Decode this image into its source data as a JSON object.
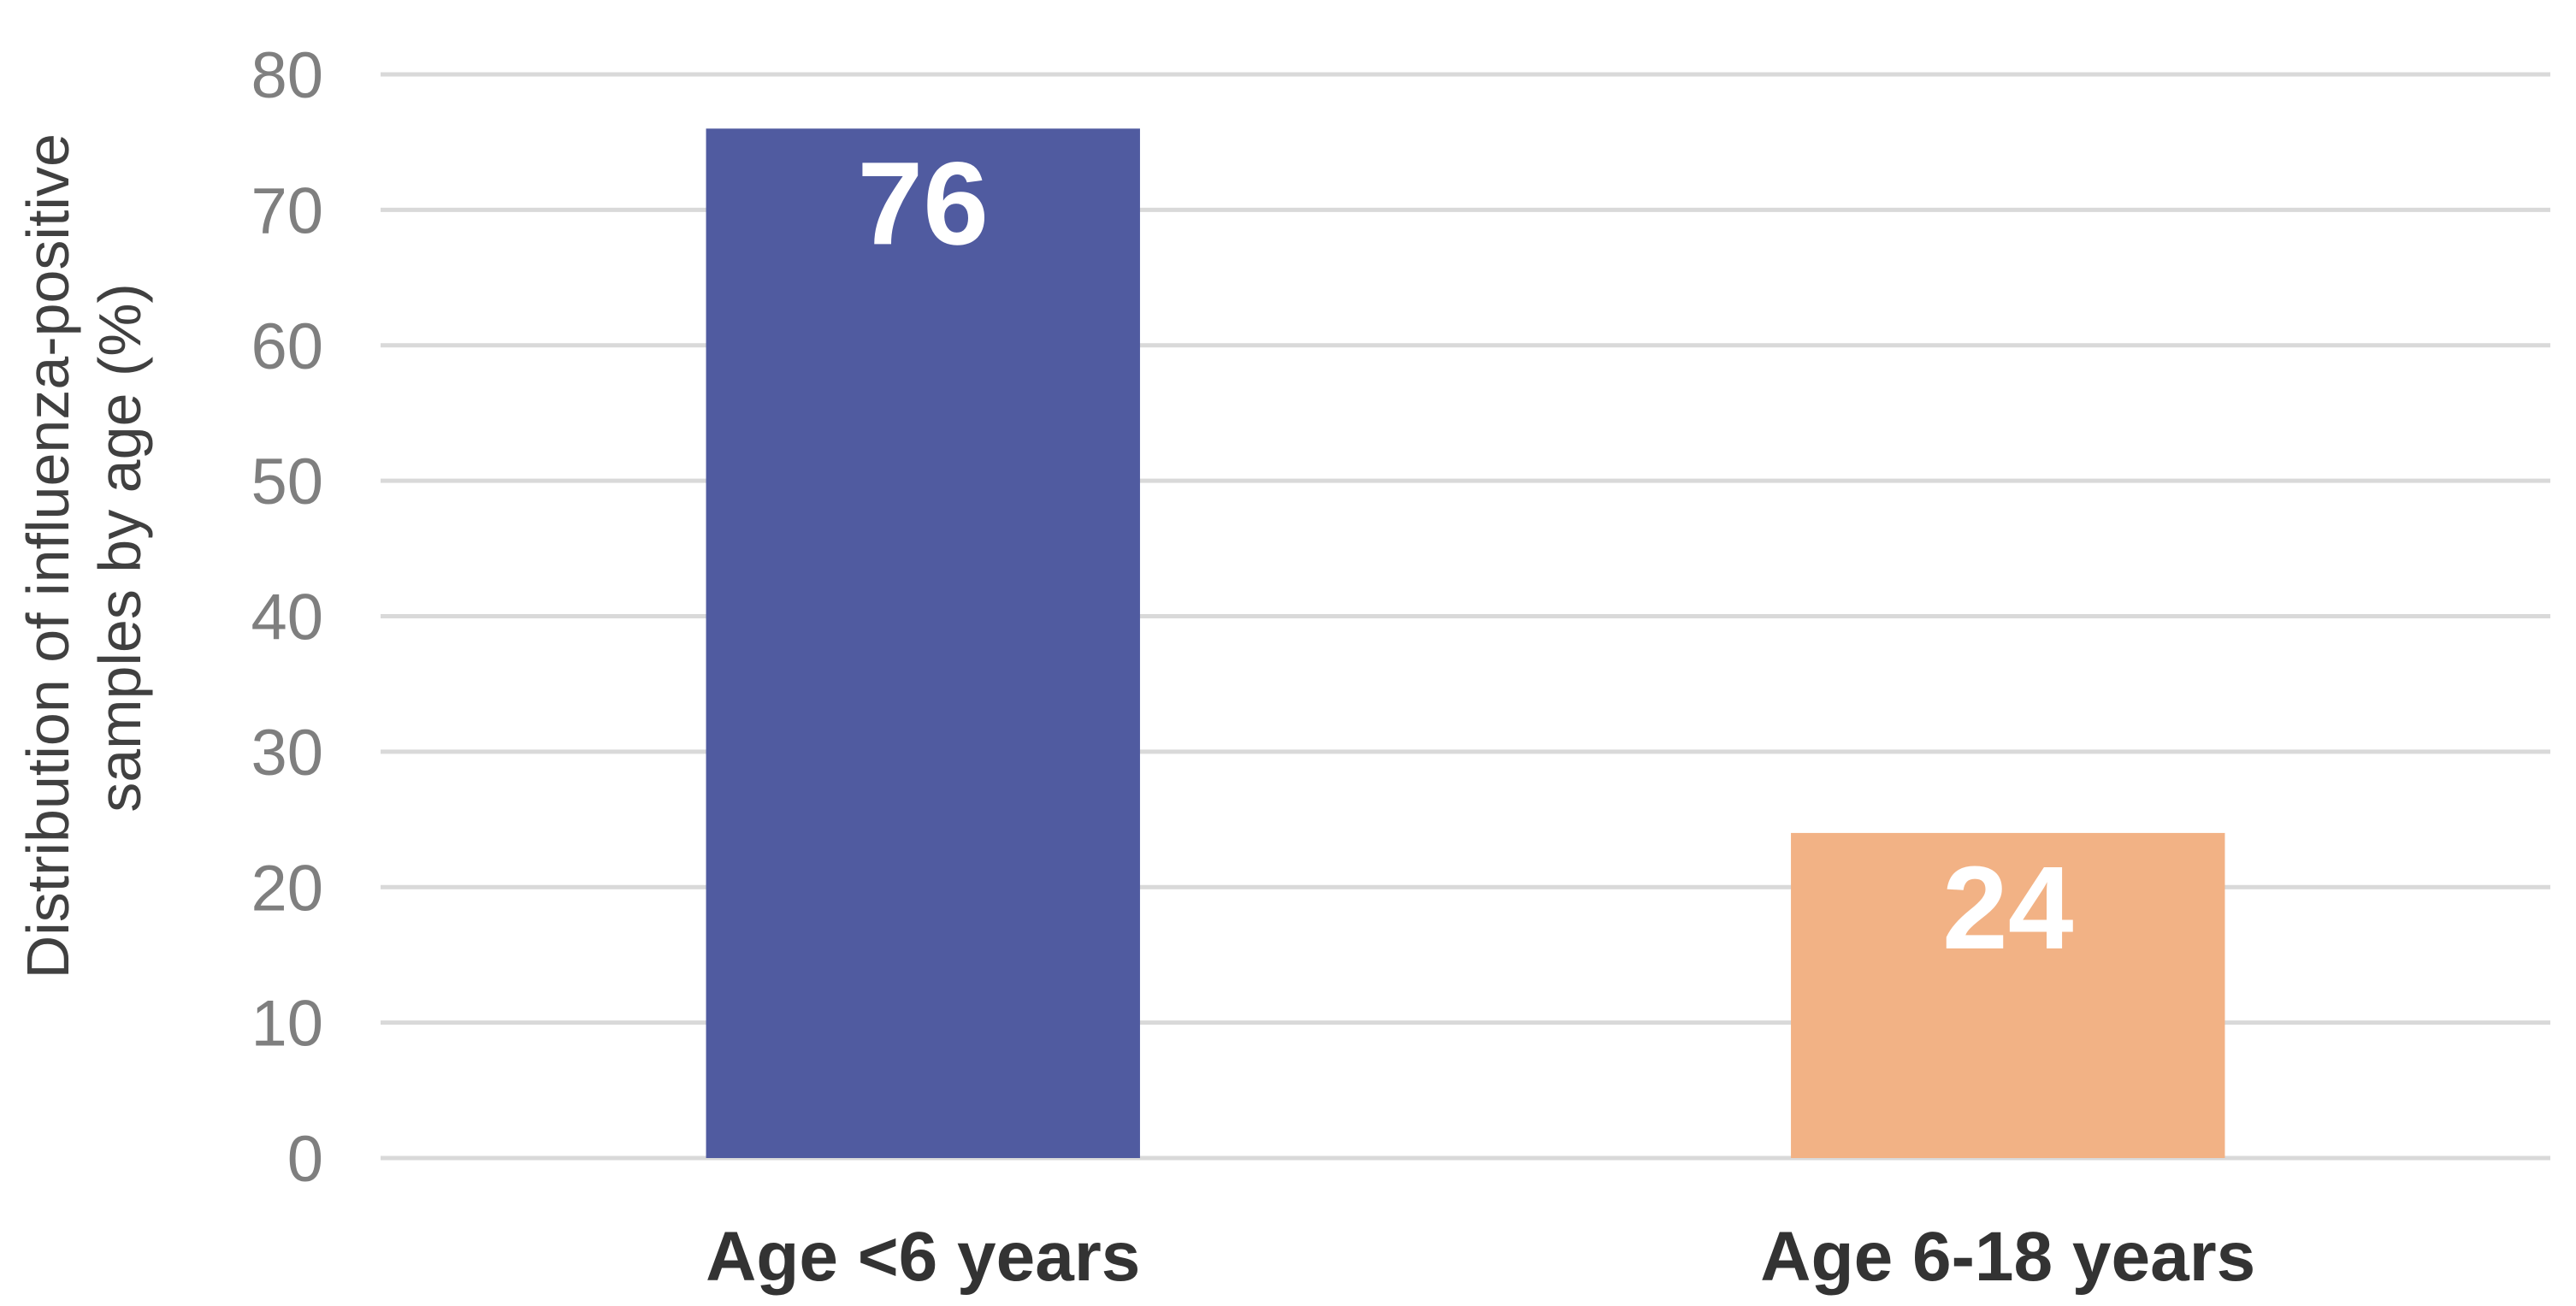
{
  "chart_data": {
    "type": "bar",
    "title": "",
    "ylabel_lines": [
      "Distribution of influenza-positive",
      "samples by age (%)"
    ],
    "xlabel": "",
    "categories": [
      "Age <6 years",
      "Age 6-18 years"
    ],
    "values": [
      76,
      24
    ],
    "data_labels": [
      "76",
      "24"
    ],
    "colors": [
      "#505ba0",
      "#f2b285"
    ],
    "ylim": [
      0,
      80
    ],
    "yticks": [
      0,
      10,
      20,
      30,
      40,
      50,
      60,
      70,
      80
    ],
    "grid": true,
    "legend": "none"
  }
}
